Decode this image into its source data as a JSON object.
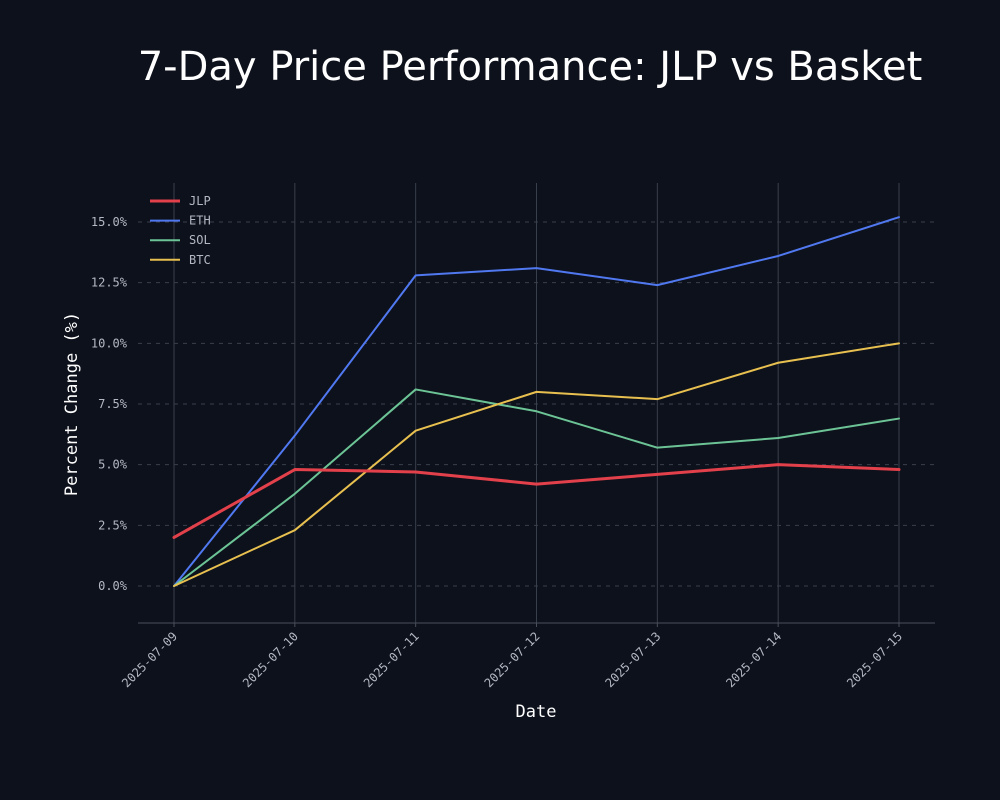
{
  "chart_data": {
    "type": "line",
    "title": "7-Day Price Performance: JLP vs Basket",
    "xlabel": "Date",
    "ylabel": "Percent Change (%)",
    "x": [
      "2025-07-09",
      "2025-07-10",
      "2025-07-11",
      "2025-07-12",
      "2025-07-13",
      "2025-07-14",
      "2025-07-15"
    ],
    "yticks": [
      "0.0%",
      "2.5%",
      "5.0%",
      "7.5%",
      "10.0%",
      "12.5%",
      "15.0%"
    ],
    "ytick_values": [
      0,
      2.5,
      5.0,
      7.5,
      10.0,
      12.5,
      15.0
    ],
    "ylim": [
      -1.5,
      16.7
    ],
    "grid": "on",
    "legend_position": "top-left",
    "series": [
      {
        "name": "JLP",
        "color": "#e2404a",
        "values": [
          2.0,
          4.8,
          4.7,
          4.2,
          4.6,
          5.0,
          4.8
        ]
      },
      {
        "name": "ETH",
        "color": "#5078f0",
        "values": [
          0.0,
          6.2,
          12.8,
          13.1,
          12.4,
          13.6,
          15.2
        ]
      },
      {
        "name": "SOL",
        "color": "#6cc496",
        "values": [
          0.0,
          3.8,
          8.1,
          7.2,
          5.7,
          6.1,
          6.9
        ]
      },
      {
        "name": "BTC",
        "color": "#e8c050",
        "values": [
          0.0,
          2.3,
          6.4,
          8.0,
          7.7,
          9.2,
          10.0
        ]
      }
    ]
  },
  "colors": {
    "background": "#0d111b",
    "grid": "#3a3f4c",
    "axis": "#4a4f5c",
    "text": "#b4b8c4"
  }
}
